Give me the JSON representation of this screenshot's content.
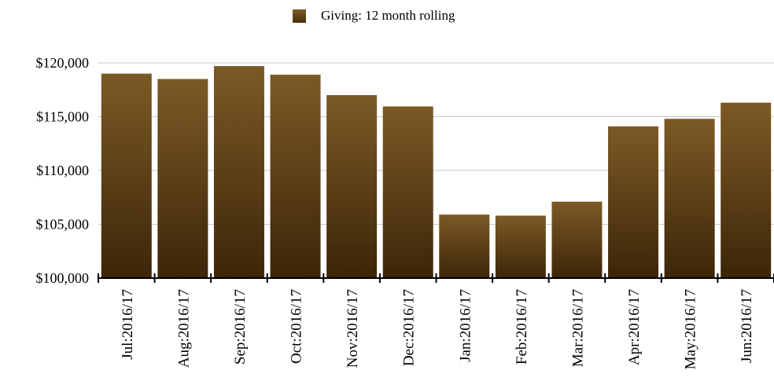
{
  "chart_data": {
    "type": "bar",
    "title": "",
    "xlabel": "",
    "ylabel": "",
    "categories": [
      "Jul:2016/17",
      "Aug:2016/17",
      "Sep:2016/17",
      "Oct:2016/17",
      "Nov:2016/17",
      "Dec:2016/17",
      "Jan:2016/17",
      "Feb:2016/17",
      "Mar:2016/17",
      "Apr:2016/17",
      "May:2016/17",
      "Jun:2016/17"
    ],
    "series": [
      {
        "name": "Giving: 12 month rolling",
        "values": [
          119000,
          118500,
          119700,
          118900,
          117000,
          115950,
          105900,
          105800,
          107100,
          114100,
          114800,
          116300
        ],
        "color_top": "#7c5a26",
        "color_bottom": "#3c2508"
      }
    ],
    "ylim": [
      100000,
      120000
    ],
    "yticks": [
      100000,
      105000,
      110000,
      115000,
      120000
    ],
    "ytick_labels": [
      "$100,000",
      "$105,000",
      "$110,000",
      "$115,000",
      "$120,000"
    ],
    "grid": true,
    "legend_position": "top-center"
  }
}
